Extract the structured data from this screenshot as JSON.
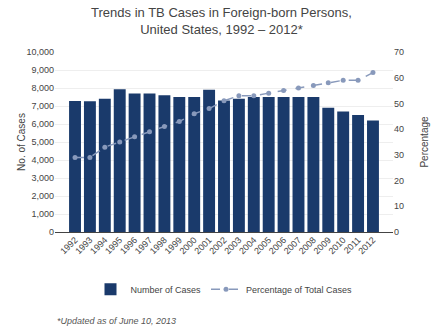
{
  "chart_data": {
    "type": "bar",
    "title": "Trends in TB Cases in Foreign-born Persons,\nUnited States, 1992 – 2012*",
    "ylabel": "No. of Cases",
    "y2label": "Percentage",
    "annotations": [
      "*Updated as of June 10, 2013"
    ],
    "categories": [
      "1992",
      "1993",
      "1994",
      "1995",
      "1996",
      "1997",
      "1998",
      "1999",
      "2000",
      "2001",
      "2002",
      "2003",
      "2004",
      "2005",
      "2006",
      "2007",
      "2008",
      "2009",
      "2010",
      "2011",
      "2012"
    ],
    "series": [
      {
        "name": "Number of Cases",
        "type": "bar",
        "color": "#1a3a6b",
        "values": [
          7273,
          7270,
          7400,
          7930,
          7700,
          7700,
          7600,
          7500,
          7500,
          7900,
          7300,
          7400,
          7500,
          7500,
          7500,
          7500,
          7500,
          6900,
          6700,
          6500,
          6200
        ]
      },
      {
        "name": "Percentage of Total Cases",
        "type": "line",
        "axis": "y2",
        "color": "#8899bb",
        "line_style": "dashed",
        "marker": "circle",
        "values": [
          29,
          29,
          33,
          35,
          37,
          39,
          41,
          43,
          46,
          48,
          51,
          53,
          53,
          54,
          55,
          56,
          57,
          58,
          59,
          59,
          62
        ]
      }
    ],
    "ylim": [
      0,
      10000
    ],
    "yticks": [
      0,
      {
        "value": 1000,
        "label": "1,000"
      },
      {
        "value": 2000,
        "label": "2,000"
      },
      {
        "value": 3000,
        "label": "3,000"
      },
      {
        "value": 4000,
        "label": "4,000"
      },
      {
        "value": 5000,
        "label": "5,000"
      },
      {
        "value": 6000,
        "label": "6,000"
      },
      {
        "value": 7000,
        "label": "7,000"
      },
      {
        "value": 8000,
        "label": "8,000"
      },
      {
        "value": 9000,
        "label": "9,000"
      },
      {
        "value": 10000,
        "label": "10,000"
      }
    ],
    "y2lim": [
      0,
      70
    ],
    "y2ticks": [
      0,
      10,
      20,
      30,
      40,
      50,
      60,
      70
    ],
    "grid": true,
    "legend": "bottom"
  }
}
